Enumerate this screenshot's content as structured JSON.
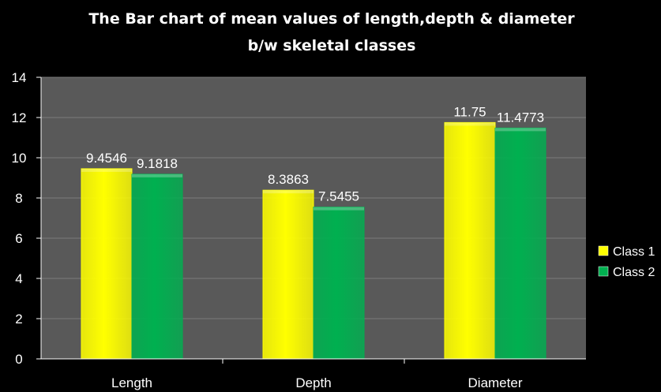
{
  "colors": {
    "background": "#000000",
    "plot_area": "#595959",
    "gridline": "#7a7a7a",
    "text": "#ffffff",
    "class1": "#ffff00",
    "class2": "#00b050"
  },
  "chart_data": {
    "type": "bar",
    "title_line1": "The Bar chart of mean values of length,depth & diameter",
    "title_line2": "b/w skeletal classes",
    "categories": [
      "Length",
      "Depth",
      "Diameter"
    ],
    "series": [
      {
        "name": "Class 1",
        "values": [
          9.4546,
          8.3863,
          11.75
        ],
        "labels": [
          "9.4546",
          "8.3863",
          "11.75"
        ],
        "color": "#ffff00"
      },
      {
        "name": "Class 2",
        "values": [
          9.1818,
          7.5455,
          11.4773
        ],
        "labels": [
          "9.1818",
          "7.5455",
          "11.4773"
        ],
        "color": "#00b050"
      }
    ],
    "ylim": [
      0,
      14
    ],
    "yticks": [
      0,
      2,
      4,
      6,
      8,
      10,
      12,
      14
    ],
    "grid": true,
    "legend_position": "right"
  }
}
